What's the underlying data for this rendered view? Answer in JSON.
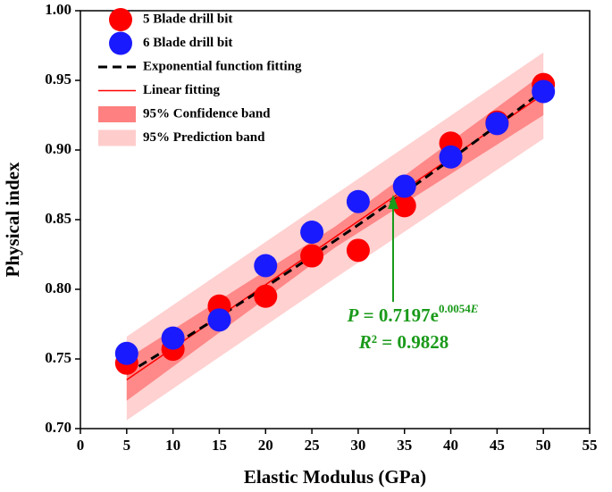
{
  "chart_data": {
    "type": "scatter",
    "x_label": "Elastic Modulus (GPa)",
    "y_label": "Physical index",
    "xlim": [
      0,
      55
    ],
    "xticks": [
      0,
      5,
      10,
      15,
      20,
      25,
      30,
      35,
      40,
      45,
      50,
      55
    ],
    "ylim": [
      0.7,
      1.0
    ],
    "yticks": [
      {
        "value": 0.7,
        "label": "0.70"
      },
      0.75,
      {
        "value": 0.8,
        "label": "0.80"
      },
      0.85,
      {
        "value": 0.9,
        "label": "0.90"
      },
      0.95,
      {
        "value": 1.0,
        "label": "1.00"
      }
    ],
    "series": [
      {
        "name": "5 Blade drill bit",
        "kind": "scatter",
        "color": "#ff0000",
        "x": [
          5,
          10,
          15,
          20,
          25,
          30,
          35,
          40,
          45,
          50
        ],
        "values": [
          0.747,
          0.757,
          0.788,
          0.795,
          0.824,
          0.828,
          0.86,
          0.905,
          0.92,
          0.947
        ]
      },
      {
        "name": "6 Blade drill bit",
        "kind": "scatter",
        "color": "#1a1aff",
        "x": [
          5,
          10,
          15,
          20,
          25,
          30,
          35,
          40,
          45,
          50
        ],
        "values": [
          0.754,
          0.765,
          0.778,
          0.817,
          0.841,
          0.863,
          0.874,
          0.895,
          0.919,
          0.942
        ]
      },
      {
        "name": "Exponential function fitting",
        "kind": "dashed",
        "color": "#000000",
        "x": [
          5,
          10,
          15,
          20,
          25,
          30,
          35,
          40,
          45,
          50
        ],
        "values": [
          0.7394,
          0.7596,
          0.7804,
          0.8017,
          0.8237,
          0.8462,
          0.8694,
          0.8932,
          0.9176,
          0.9427
        ]
      },
      {
        "name": "Linear fitting",
        "kind": "line",
        "color": "#ff0000",
        "x": [
          5,
          50
        ],
        "values": [
          0.735,
          0.94
        ]
      },
      {
        "name": "95% Confidence band",
        "kind": "band",
        "color": "#ff8080",
        "x": [
          5,
          27.5,
          50
        ],
        "upper": [
          0.75,
          0.845,
          0.955
        ],
        "lower": [
          0.72,
          0.83,
          0.925
        ]
      },
      {
        "name": "95% Prediction band",
        "kind": "band",
        "color": "#ffcccc",
        "x": [
          5,
          27.5,
          50
        ],
        "upper": [
          0.766,
          0.868,
          0.97
        ],
        "lower": [
          0.706,
          0.808,
          0.908
        ]
      }
    ],
    "annotation": {
      "line1": [
        "P",
        " = 0.7197e",
        "0.0054",
        "E"
      ],
      "line2": [
        "R",
        "² = 0.9828"
      ],
      "color": "#1a9a1a"
    }
  }
}
